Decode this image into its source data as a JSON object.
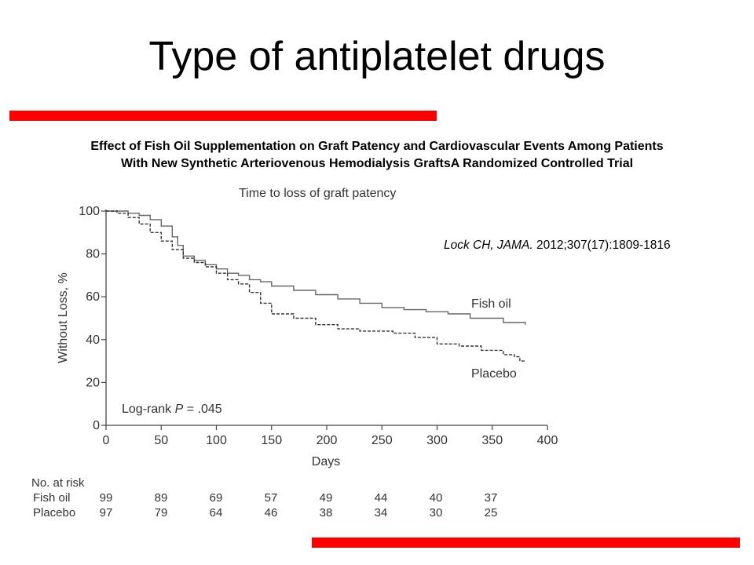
{
  "slide": {
    "title": "Type of antiplatelet drugs",
    "subtitle_line1": "Effect of Fish Oil Supplementation on Graft Patency and Cardiovascular Events Among Patients",
    "subtitle_line2": "With New Synthetic Arteriovenous Hemodialysis GraftsA Randomized Controlled Trial",
    "citation_author": "Lock CH, JAMA.",
    "citation_rest": " 2012;307(17):1809-1816",
    "accent_color": "#ff0000"
  },
  "chart_data": {
    "type": "line",
    "title": "Time to loss of graft patency",
    "xlabel": "Days",
    "ylabel": "Without Loss, %",
    "xlim": [
      0,
      400
    ],
    "ylim": [
      0,
      100
    ],
    "x_ticks": [
      0,
      50,
      100,
      150,
      200,
      250,
      300,
      350,
      400
    ],
    "y_ticks": [
      0,
      20,
      40,
      60,
      80,
      100
    ],
    "grid": false,
    "annotation_prefix": "Log-rank ",
    "annotation_p": "P",
    "annotation_value": " = .045",
    "series": [
      {
        "name": "Fish oil",
        "style": "solid",
        "color": "#666666",
        "points": [
          [
            0,
            100
          ],
          [
            15,
            100
          ],
          [
            20,
            99
          ],
          [
            30,
            98
          ],
          [
            40,
            96
          ],
          [
            50,
            93
          ],
          [
            60,
            88
          ],
          [
            65,
            84
          ],
          [
            70,
            79
          ],
          [
            80,
            77
          ],
          [
            90,
            75
          ],
          [
            100,
            73
          ],
          [
            110,
            71
          ],
          [
            120,
            70
          ],
          [
            130,
            68
          ],
          [
            140,
            67
          ],
          [
            150,
            65
          ],
          [
            170,
            63
          ],
          [
            190,
            61
          ],
          [
            210,
            59
          ],
          [
            230,
            57
          ],
          [
            250,
            55
          ],
          [
            270,
            54
          ],
          [
            290,
            53
          ],
          [
            310,
            52
          ],
          [
            330,
            50
          ],
          [
            350,
            50
          ],
          [
            360,
            48
          ],
          [
            380,
            47
          ]
        ]
      },
      {
        "name": "Placebo",
        "style": "dashed",
        "color": "#333333",
        "points": [
          [
            0,
            100
          ],
          [
            10,
            99
          ],
          [
            20,
            97
          ],
          [
            30,
            94
          ],
          [
            40,
            90
          ],
          [
            50,
            86
          ],
          [
            60,
            82
          ],
          [
            70,
            78
          ],
          [
            80,
            76
          ],
          [
            90,
            74
          ],
          [
            100,
            71
          ],
          [
            110,
            68
          ],
          [
            120,
            66
          ],
          [
            130,
            62
          ],
          [
            140,
            57
          ],
          [
            150,
            52
          ],
          [
            170,
            50
          ],
          [
            190,
            47
          ],
          [
            210,
            45
          ],
          [
            230,
            44
          ],
          [
            260,
            43
          ],
          [
            280,
            41
          ],
          [
            300,
            38
          ],
          [
            320,
            37
          ],
          [
            340,
            35
          ],
          [
            360,
            33
          ],
          [
            370,
            32
          ],
          [
            375,
            30
          ],
          [
            380,
            30
          ]
        ]
      }
    ],
    "risk_table": {
      "header": "No. at risk",
      "rows": [
        {
          "label": "Fish oil",
          "values": [
            "99",
            "89",
            "69",
            "57",
            "49",
            "44",
            "40",
            "37"
          ]
        },
        {
          "label": "Placebo",
          "values": [
            "97",
            "79",
            "64",
            "46",
            "38",
            "34",
            "30",
            "25"
          ]
        }
      ]
    }
  }
}
